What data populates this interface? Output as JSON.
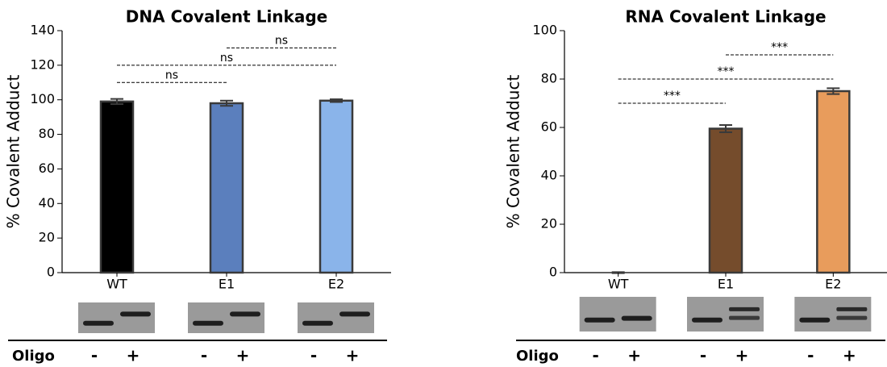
{
  "chart_data": [
    {
      "type": "bar",
      "title": "DNA Covalent Linkage",
      "y_label": "% Covalent Adduct",
      "categories": [
        "WT",
        "E1",
        "E2"
      ],
      "values": [
        99,
        98,
        99.5
      ],
      "errors": [
        1.5,
        1.5,
        0.8
      ],
      "colors": [
        "#000000",
        "#5b7fbd",
        "#8ab4ea"
      ],
      "ylim": [
        0,
        140
      ],
      "yticks": [
        0,
        20,
        40,
        60,
        80,
        100,
        120,
        140
      ],
      "annotations": [
        {
          "text": "ns",
          "x": [
            0,
            1
          ],
          "y": 110
        },
        {
          "text": "ns",
          "x": [
            0,
            2
          ],
          "y": 120
        },
        {
          "text": "ns",
          "x": [
            1,
            2
          ],
          "y": 130
        }
      ],
      "gel_row": {
        "label": "Oligo",
        "lanes": [
          "-",
          "+",
          "-",
          "+",
          "-",
          "+"
        ]
      }
    },
    {
      "type": "bar",
      "title": "RNA Covalent Linkage",
      "y_label": "% Covalent Adduct",
      "categories": [
        "WT",
        "E1",
        "E2"
      ],
      "values": [
        0,
        59.5,
        75
      ],
      "errors": [
        0.2,
        1.5,
        1.2
      ],
      "colors": [
        "#754c2c",
        "#754c2c",
        "#e89c5c"
      ],
      "ylim": [
        0,
        100
      ],
      "yticks": [
        0,
        20,
        40,
        60,
        80,
        100
      ],
      "annotations": [
        {
          "text": "***",
          "x": [
            0,
            1
          ],
          "y": 70
        },
        {
          "text": "***",
          "x": [
            0,
            2
          ],
          "y": 80
        },
        {
          "text": "***",
          "x": [
            1,
            2
          ],
          "y": 90
        }
      ],
      "gel_row": {
        "label": "Oligo",
        "lanes": [
          "-",
          "+",
          "-",
          "+",
          "-",
          "+"
        ]
      }
    }
  ]
}
